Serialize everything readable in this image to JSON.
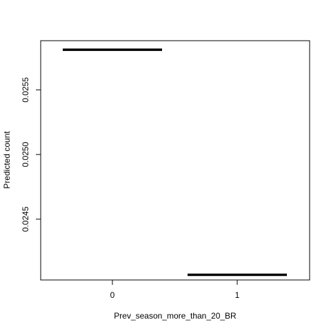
{
  "chart_data": {
    "type": "line",
    "xlabel": "Prev_season_more_than_20_BR",
    "ylabel": "Predicted count",
    "categories": [
      "0",
      "1"
    ],
    "values": [
      0.02581,
      0.02407
    ],
    "ylim": [
      0.02403,
      0.02588
    ],
    "y_ticks": [
      "0.0245",
      "0.0250",
      "0.0255"
    ],
    "grid": false
  }
}
